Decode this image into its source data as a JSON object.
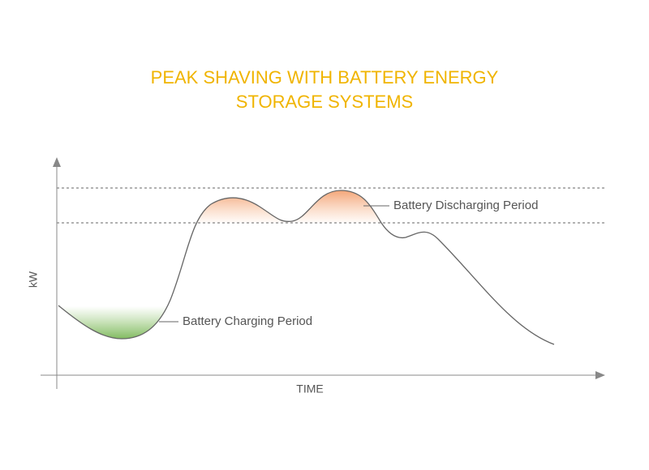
{
  "title": {
    "lines": [
      "PEAK SHAVING WITH BATTERY ENERGY",
      "STORAGE SYSTEMS"
    ]
  },
  "axes": {
    "y_label": "kW",
    "x_label": "TIME"
  },
  "annotations": {
    "discharging": "Battery Discharging Period",
    "charging": "Battery Charging Period"
  }
}
